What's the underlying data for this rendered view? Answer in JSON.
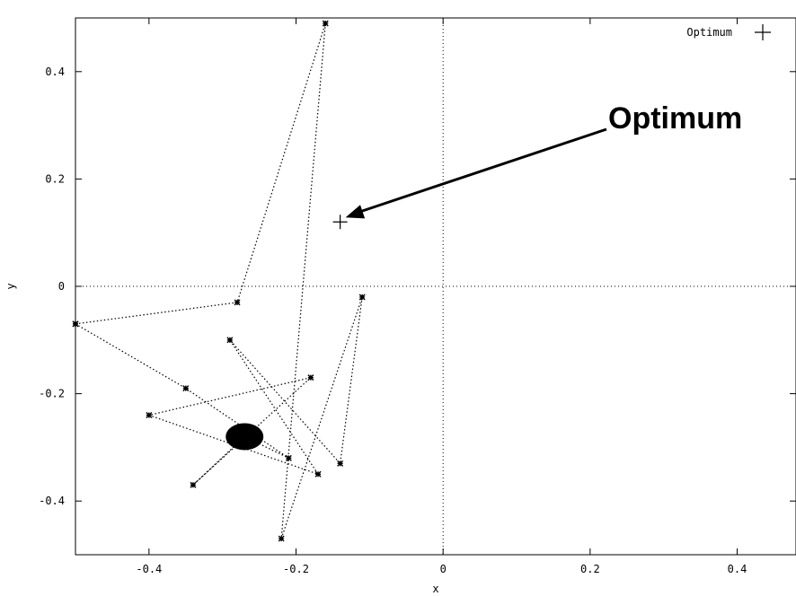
{
  "chart_data": {
    "type": "scatter",
    "title": "",
    "xlabel": "x",
    "ylabel": "y",
    "xlim": [
      -0.5,
      0.48
    ],
    "ylim": [
      -0.5,
      0.5
    ],
    "xticks": [
      -0.4,
      -0.2,
      0,
      0.2,
      0.4
    ],
    "xtick_labels": [
      "-0.4",
      "-0.2",
      "0",
      "0.2",
      "0.4"
    ],
    "yticks": [
      -0.4,
      -0.2,
      0,
      0.2,
      0.4
    ],
    "ytick_labels": [
      "-0.4",
      "-0.2",
      "0",
      "0.2",
      "0.4"
    ],
    "zero_lines": true,
    "legend": {
      "position": "top-right",
      "entries": [
        "Optimum"
      ]
    },
    "optimum": {
      "x": -0.14,
      "y": 0.12
    },
    "trajectory": [
      {
        "x": -0.5,
        "y": -0.07
      },
      {
        "x": -0.28,
        "y": -0.03
      },
      {
        "x": -0.16,
        "y": 0.49
      },
      {
        "x": -0.22,
        "y": -0.47
      },
      {
        "x": -0.11,
        "y": -0.02
      },
      {
        "x": -0.14,
        "y": -0.33
      },
      {
        "x": -0.29,
        "y": -0.1
      },
      {
        "x": -0.17,
        "y": -0.35
      },
      {
        "x": -0.4,
        "y": -0.24
      },
      {
        "x": -0.18,
        "y": -0.17
      },
      {
        "x": -0.34,
        "y": -0.37
      },
      {
        "x": -0.27,
        "y": -0.28
      },
      {
        "x": -0.21,
        "y": -0.32
      },
      {
        "x": -0.35,
        "y": -0.19
      },
      {
        "x": -0.5,
        "y": -0.07
      }
    ],
    "cluster_center": {
      "x": -0.27,
      "y": -0.28
    },
    "annotations": [
      {
        "text": "Optimum",
        "points_to": {
          "x": -0.14,
          "y": 0.12
        }
      }
    ]
  }
}
